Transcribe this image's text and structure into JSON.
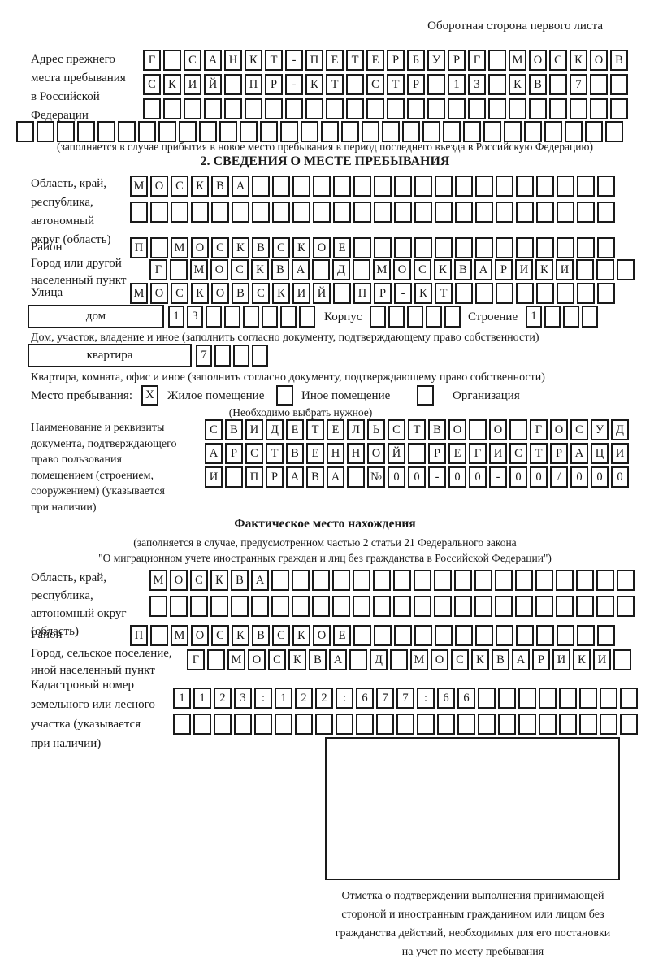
{
  "page": {
    "header_note": "Оборотная сторона первого листа"
  },
  "prev_address": {
    "label": [
      "Адрес прежнего",
      "места пребывания",
      "в Российской",
      "Федерации"
    ],
    "row1": {
      "n": 24,
      "text": "Г САНКТ-ПЕТЕРБУРГ МОСКОВ"
    },
    "row2": {
      "n": 24,
      "text": "СКИЙ ПР-КТ СТР 13 КВ 7"
    },
    "row3": {
      "n": 24,
      "text": ""
    },
    "row4": {
      "n": 30,
      "text": ""
    },
    "note": "(заполняется в случае прибытия в новое место пребывания в период последнего въезда в Российскую Федерацию)"
  },
  "section2": {
    "title": "2. СВЕДЕНИЯ О МЕСТЕ ПРЕБЫВАНИЯ",
    "oblast": {
      "label": [
        "Область, край,",
        "республика,",
        "автономный",
        "округ (область)"
      ],
      "row1": {
        "n": 24,
        "text": "МОСКВА"
      },
      "row2": {
        "n": 24,
        "text": ""
      }
    },
    "rayon": {
      "label": "Район",
      "row": {
        "n": 24,
        "text": "П МОСКВСКОЕ"
      }
    },
    "gorod": {
      "label": [
        "Город или другой",
        "населенный пункт"
      ],
      "row": {
        "n": 24,
        "text": "Г МОСКВА Д МОСКВАРИКИ"
      }
    },
    "ulitsa": {
      "label": "Улица",
      "row": {
        "n": 24,
        "text": "МОСКОВСКИЙ ПР-КТ"
      }
    },
    "dom": {
      "box_label": "дом",
      "cells": {
        "n": 8,
        "text": "13"
      },
      "korpus_label": "Корпус",
      "korpus_cells": {
        "n": 5,
        "text": ""
      },
      "stroenie_label": "Строение",
      "stroenie_cells": {
        "n": 4,
        "text": "1"
      }
    },
    "dom_note": "Дом, участок, владение и иное (заполнить согласно документу, подтверждающему право собственности)",
    "kvartira": {
      "box_label": "квартира",
      "cells": {
        "n": 4,
        "text": "7"
      }
    },
    "kvartira_note": "Квартира, комната, офис и иное (заполнить согласно документу, подтверждающему право собственности)",
    "mesto": {
      "label": "Место пребывания:",
      "options": [
        {
          "label": "Жилое помещение",
          "mark": "X"
        },
        {
          "label": "Иное помещение",
          "mark": ""
        },
        {
          "label": "Организация",
          "mark": ""
        }
      ],
      "note": "(Необходимо выбрать нужное)"
    },
    "doc": {
      "label": [
        "Наименование и реквизиты",
        "документа, подтверждающего",
        "право пользования",
        "помещением (строением,",
        "сооружением) (указывается",
        "при наличии)"
      ],
      "row1": {
        "n": 21,
        "text": "СВИДЕТЕЛЬСТВО О ГОСУД"
      },
      "row2": {
        "n": 21,
        "text": "АРСТВЕННОЙ РЕГИСТРАЦИ"
      },
      "row3": {
        "n": 21,
        "text": "И ПРАВА №00-00-00/000"
      }
    }
  },
  "fact": {
    "title": "Фактическое место нахождения",
    "note1": "(заполняется в случае, предусмотренном частью 2 статьи 21 Федерального закона",
    "note2": "\"О миграционном учете иностранных граждан и лиц без гражданства в Российской Федерации\")",
    "oblast": {
      "label": [
        "Область, край,",
        "республика,",
        "автономный округ",
        "(область)"
      ],
      "row1": {
        "n": 24,
        "text": "МОСКВА"
      },
      "row2": {
        "n": 24,
        "text": ""
      }
    },
    "rayon": {
      "label": "Район",
      "row": {
        "n": 24,
        "text": "П МОСКВСКОЕ"
      }
    },
    "gorod": {
      "label": [
        "Город, сельское поселение,",
        "иной населенный пункт"
      ],
      "row": {
        "n": 22,
        "text": "Г МОСКВА Д МОСКВАРИКИ"
      }
    },
    "kadastr": {
      "label": [
        "Кадастровый номер",
        "земельного или лесного",
        "участка (указывается",
        "при наличии)"
      ],
      "row1": {
        "n": 23,
        "text": "1123:122:677:66"
      },
      "row2": {
        "n": 23,
        "text": ""
      }
    },
    "stamp_note": [
      "Отметка о подтверждении выполнения принимающей",
      "стороной и иностранным гражданином или лицом без",
      "гражданства действий, необходимых для его постановки",
      "на учет по месту пребывания"
    ]
  }
}
